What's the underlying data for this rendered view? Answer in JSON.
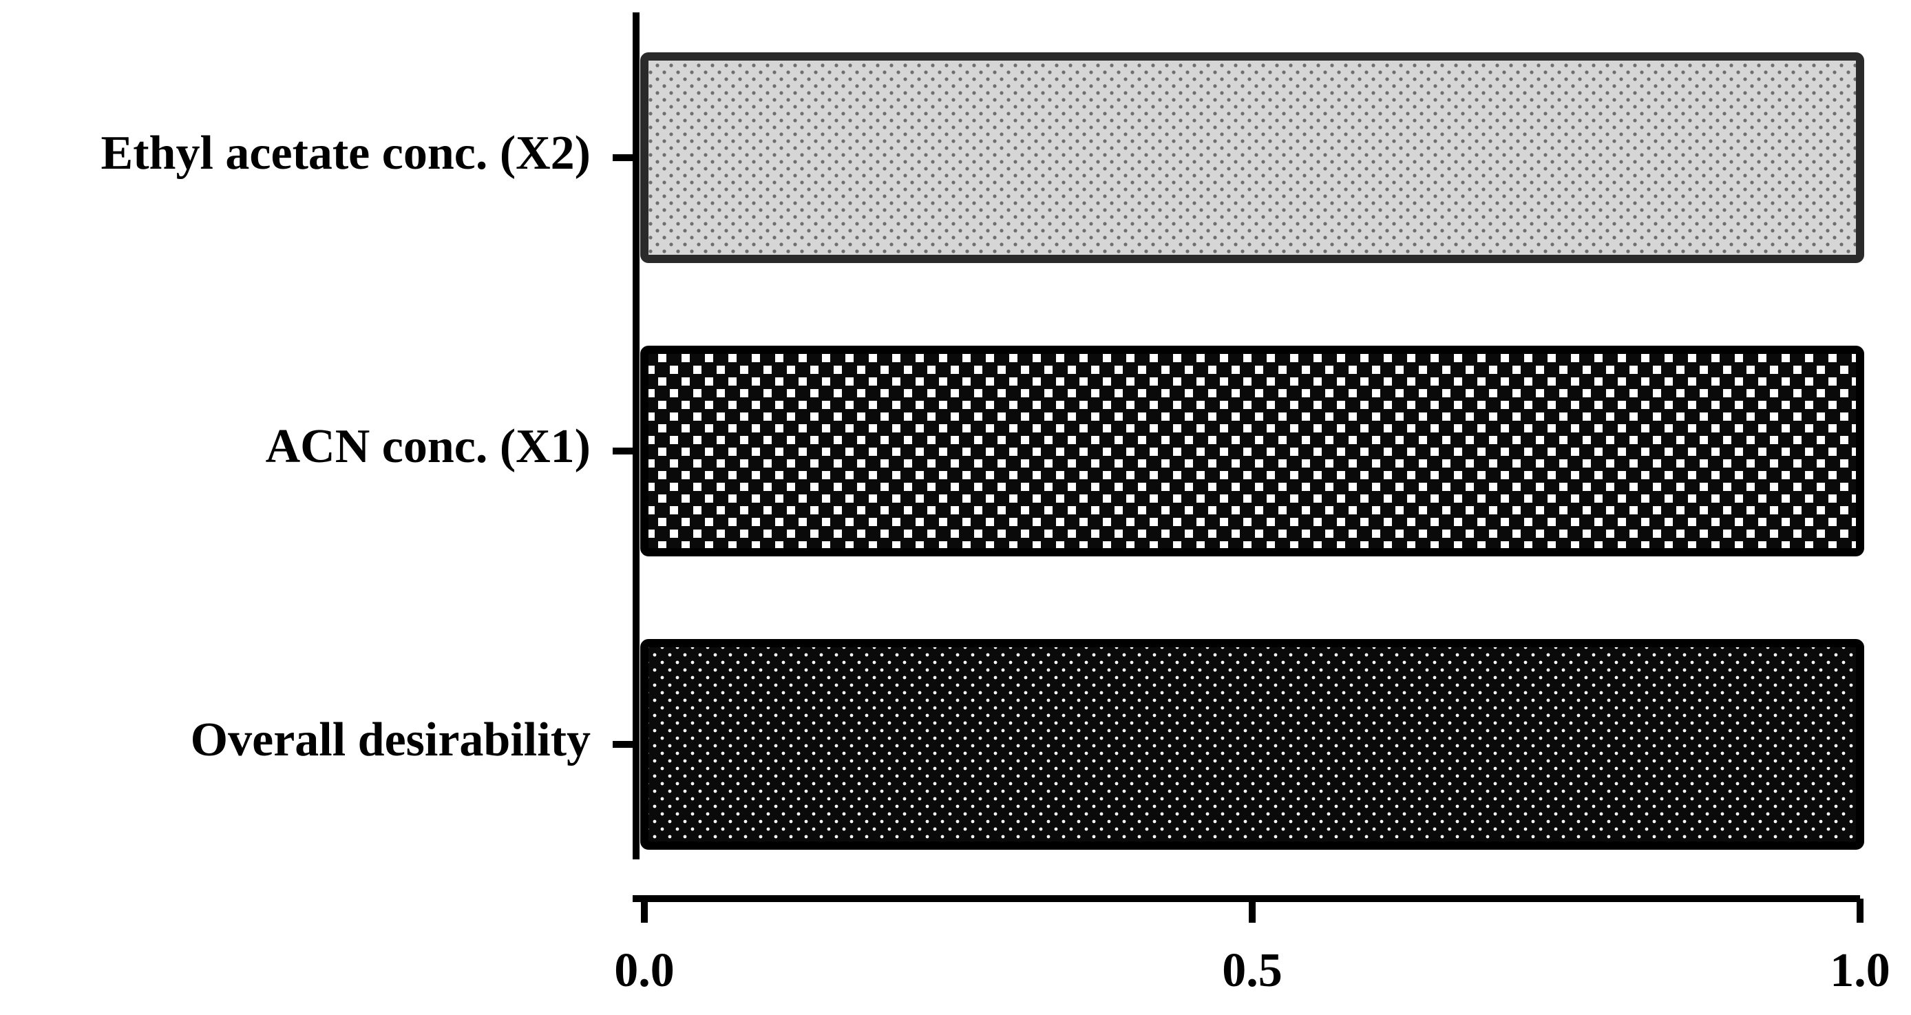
{
  "chart_data": {
    "type": "bar",
    "orientation": "horizontal",
    "categories": [
      "Ethyl acetate conc. (X2)",
      "ACN conc. (X1)",
      "Overall desirability"
    ],
    "values": [
      1.0,
      1.0,
      1.0
    ],
    "bar_fills": [
      "light-gray-fine-dots",
      "white-checker-on-black",
      "dark-fine-dots"
    ],
    "xlim": [
      0.0,
      1.0
    ],
    "xticks": [
      "0.0",
      "0.5",
      "1.0"
    ],
    "title": "",
    "xlabel": "",
    "ylabel": "",
    "grid": false,
    "legend": "none"
  },
  "colors": {
    "axis": "#000000",
    "light_bar_bg": "#d6d6d6",
    "light_bar_dot": "#6e6e6e",
    "dark_bar_bg": "#0a0a0a",
    "dark_bar_dot": "#ffffff"
  }
}
